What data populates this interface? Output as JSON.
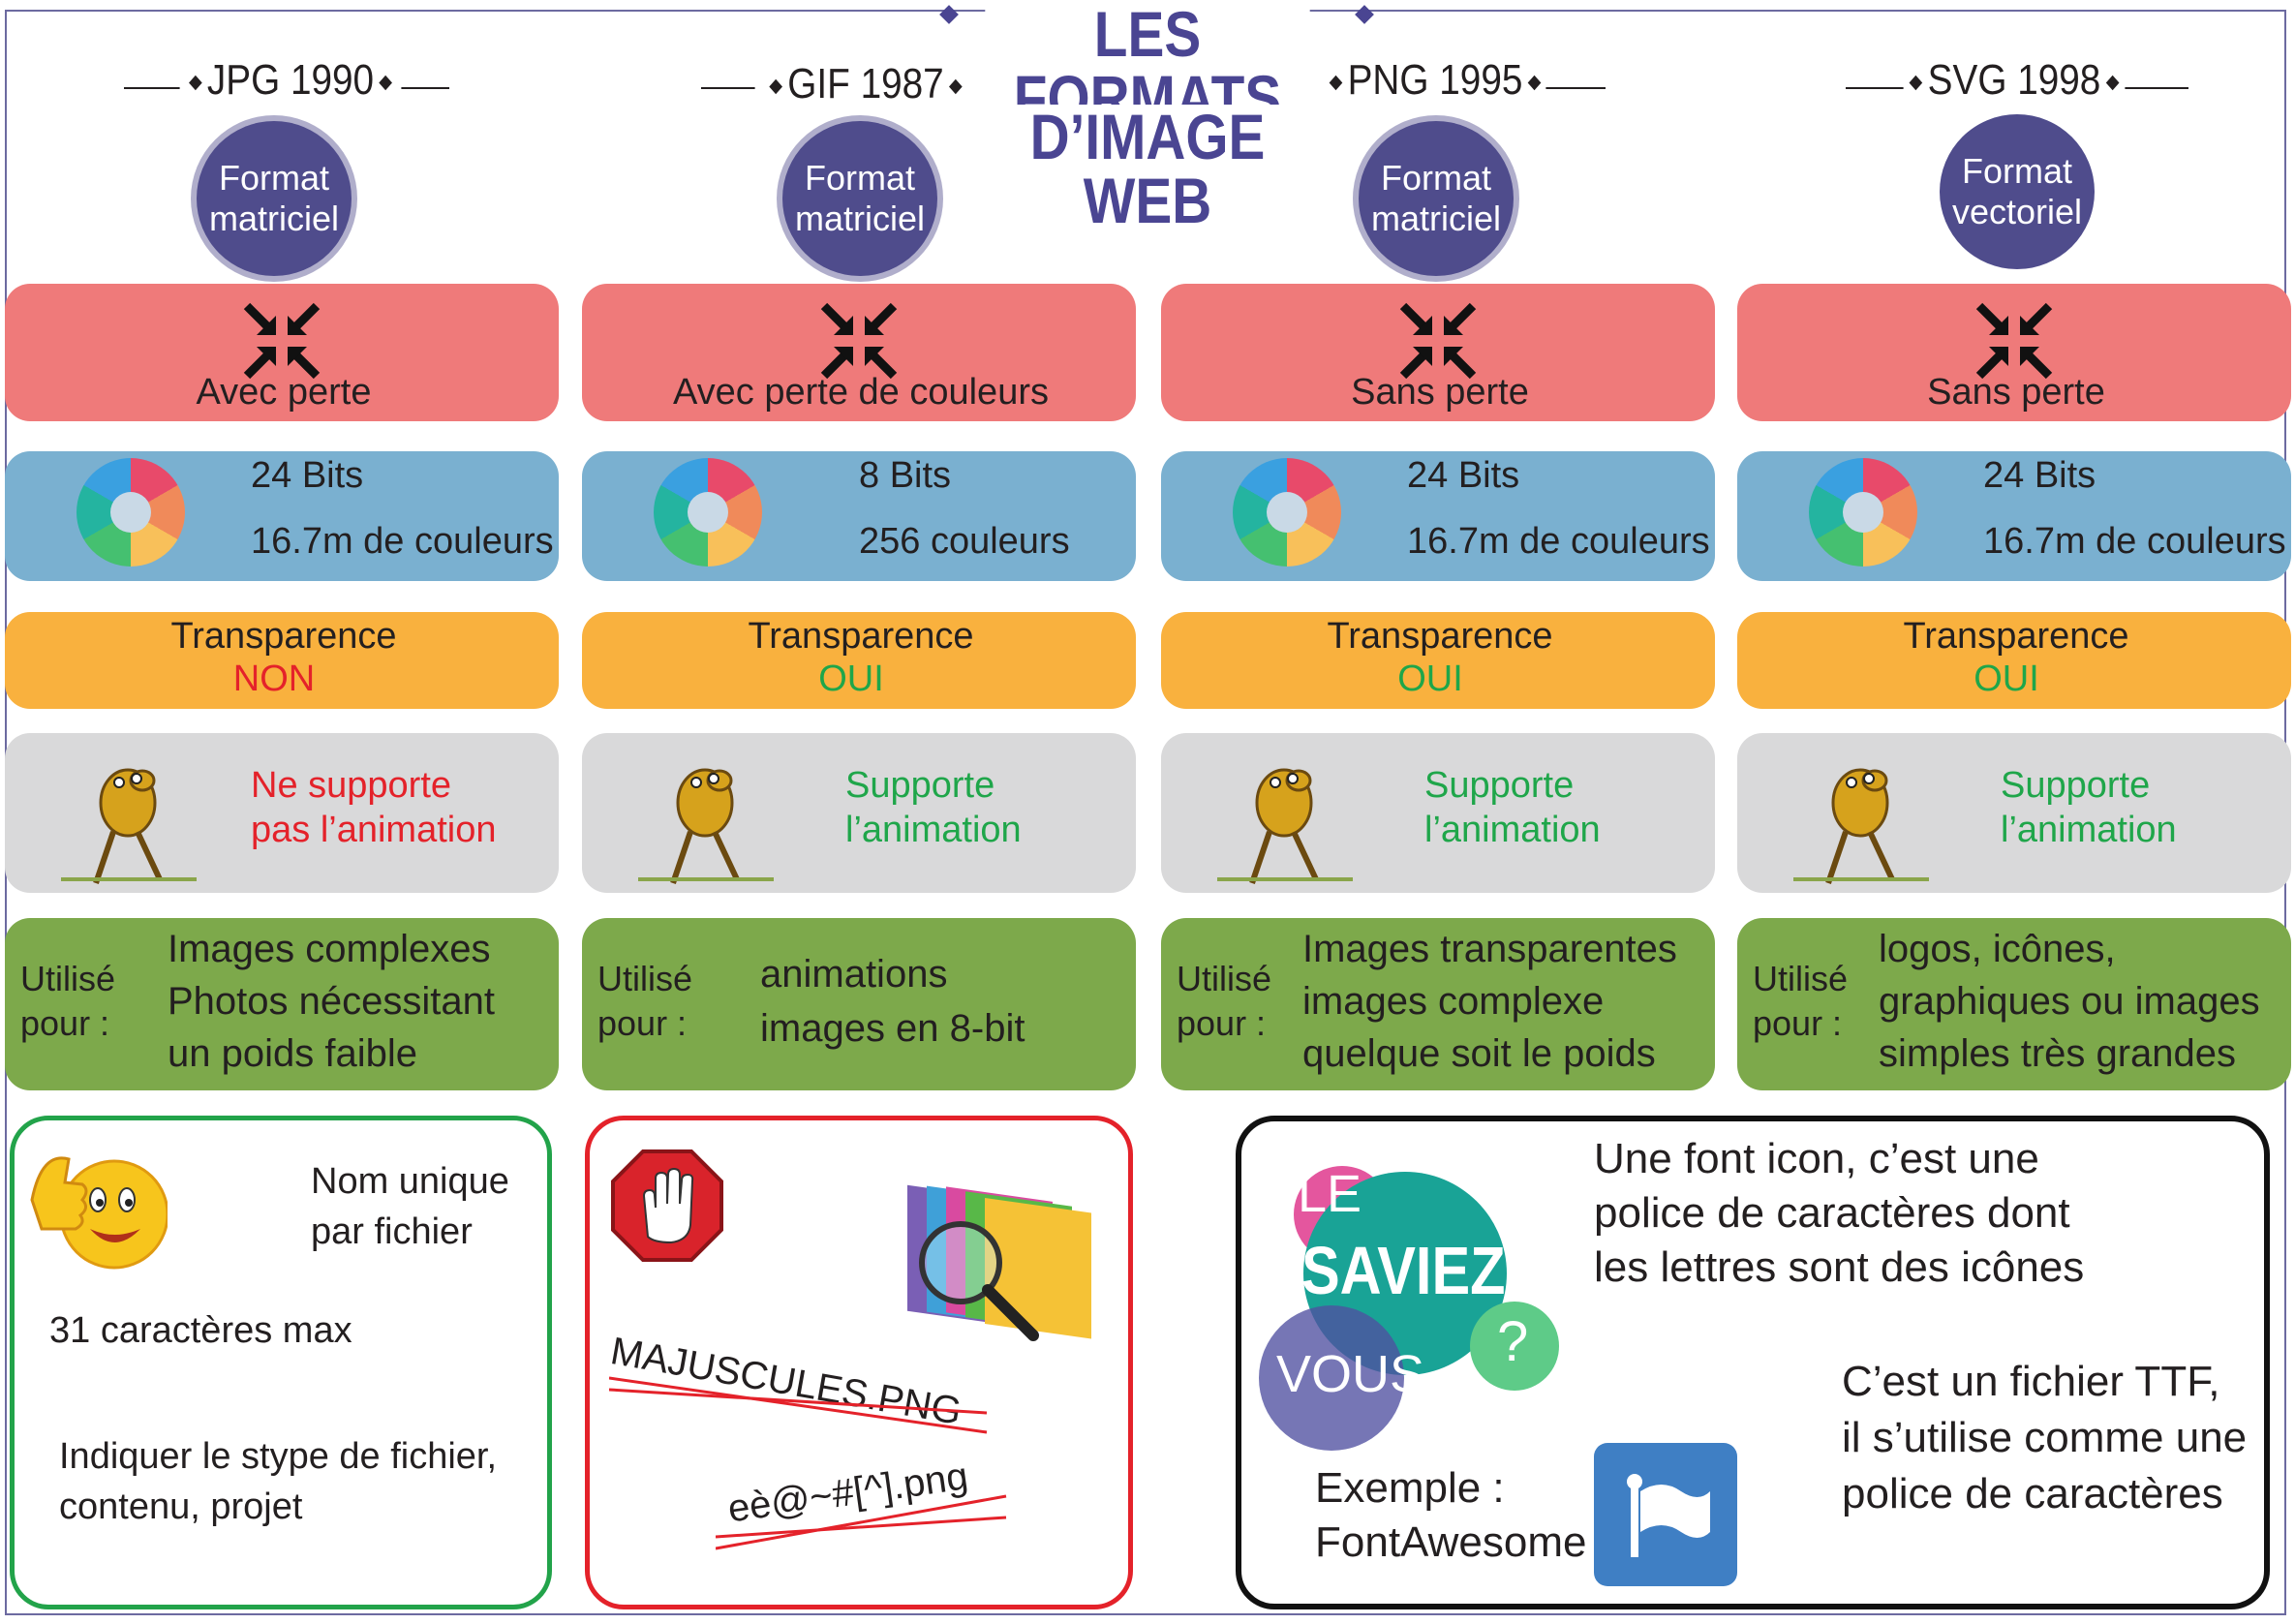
{
  "title": {
    "line1": "LES FORMATS",
    "line2": "D’IMAGE WEB"
  },
  "columns": [
    {
      "header": "JPG 1990",
      "badge_line1": "Format",
      "badge_line2": "matriciel",
      "compression": "Avec perte",
      "bits": "24 Bits",
      "colors": "16.7m de couleurs",
      "transparency_label": "Transparence",
      "transparency_value": "NON",
      "animation_line1": "Ne supporte",
      "animation_line2": "pas l’animation",
      "used_label_1": "Utilisé",
      "used_label_2": "pour :",
      "used_1": "Images complexes",
      "used_2": "Photos nécessitant",
      "used_3": "un poids faible"
    },
    {
      "header": "GIF 1987",
      "badge_line1": "Format",
      "badge_line2": "matriciel",
      "compression": "Avec perte de couleurs",
      "bits": "8 Bits",
      "colors": "256 couleurs",
      "transparency_label": "Transparence",
      "transparency_value": "OUI",
      "animation_line1": "Supporte",
      "animation_line2": "l’animation",
      "used_label_1": "Utilisé",
      "used_label_2": "pour :",
      "used_1": "animations",
      "used_2": "images en 8-bit",
      "used_3": ""
    },
    {
      "header": "PNG 1995",
      "badge_line1": "Format",
      "badge_line2": "matriciel",
      "compression": "Sans perte",
      "bits": "24 Bits",
      "colors": "16.7m de couleurs",
      "transparency_label": "Transparence",
      "transparency_value": "OUI",
      "animation_line1": "Supporte",
      "animation_line2": "l’animation",
      "used_label_1": "Utilisé",
      "used_label_2": "pour :",
      "used_1": "Images transparentes",
      "used_2": "images complexe",
      "used_3": "quelque soit le poids"
    },
    {
      "header": "SVG 1998",
      "badge_line1": "Format",
      "badge_line2": "vectoriel",
      "compression": "Sans perte",
      "bits": "24 Bits",
      "colors": "16.7m de couleurs",
      "transparency_label": "Transparence",
      "transparency_value": "OUI",
      "animation_line1": "Supporte",
      "animation_line2": "l’animation",
      "used_label_1": "Utilisé",
      "used_label_2": "pour :",
      "used_1": "logos, icônes,",
      "used_2": "graphiques ou images",
      "used_3": "simples très grandes"
    }
  ],
  "do_card": {
    "line1": "Nom unique",
    "line2": "par fichier",
    "line3": "31 caractères max",
    "line4": "Indiquer le stype de fichier,",
    "line5": "contenu, projet"
  },
  "dont_card": {
    "example1": "MAJUSCULES.PNG",
    "example2": "eè@~#[^].png"
  },
  "info_card": {
    "bubble_le": "LE",
    "bubble_saviez": "SAVIEZ",
    "bubble_vous": "VOUS",
    "bubble_q": "?",
    "text1": "Une font icon, c’est une",
    "text2": "police de caractères dont",
    "text3": "les lettres sont des icônes",
    "text4": "C’est un fichier TTF,",
    "text5": "il s’utilise comme une",
    "text6": "police de caractères",
    "example1": "Exemple :",
    "example2": "FontAwesome"
  },
  "colors": {
    "red_no": "#e4222a",
    "green_yes": "#1fa64a",
    "title": "#4a4592",
    "band_red": "#ef7a7a",
    "band_blue": "#7ab0d0",
    "band_orange": "#f9b13e",
    "band_gray": "#d9d9da",
    "band_green": "#7da94b"
  },
  "icons": [
    "compress-arrows-icon",
    "color-wheel-icon",
    "jake-dog-icon",
    "thumbs-up-smiley-icon",
    "stop-hand-icon",
    "folders-magnifier-icon",
    "flag-icon"
  ]
}
